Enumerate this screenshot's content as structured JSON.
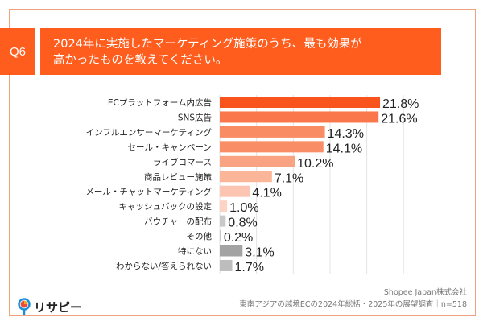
{
  "header": {
    "question_no": "Q6",
    "title_lines": [
      "2024年に実施したマーケティング施策のうち、最も効果が",
      "高かったものを教えてください。"
    ]
  },
  "chart_data": {
    "type": "bar",
    "orientation": "horizontal",
    "categories": [
      "ECプラットフォーム内広告",
      "SNS広告",
      "インフルエンサーマーケティング",
      "セール・キャンペーン",
      "ライブコマース",
      "商品レビュー施策",
      "メール・チャットマーケティング",
      "キャッシュバックの設定",
      "バウチャーの配布",
      "その他",
      "特にない",
      "わからない/答えられない"
    ],
    "values": [
      21.8,
      21.6,
      14.3,
      14.1,
      10.2,
      7.1,
      4.1,
      1.0,
      0.8,
      0.2,
      3.1,
      1.7
    ],
    "labels": [
      "21.8%",
      "21.6%",
      "14.3%",
      "14.1%",
      "10.2%",
      "7.1%",
      "4.1%",
      "1.0%",
      "0.8%",
      "0.2%",
      "3.1%",
      "1.7%"
    ],
    "colors": [
      "#f9541c",
      "#f9774a",
      "#f98c63",
      "#f98e66",
      "#faa383",
      "#fbb699",
      "#fcc5b1",
      "#fdd3c3",
      "#c9c9c9",
      "#c9c9c9",
      "#a3a3a3",
      "#bdbdbd"
    ],
    "xlim": [
      0,
      25
    ],
    "grid": true,
    "unit": "%"
  },
  "footer": {
    "company": "Shopee Japan株式会社",
    "survey": "東南アジアの越境ECの2024年総括・2025年の展望調査｜n=518",
    "logo_text": "リサピー"
  }
}
